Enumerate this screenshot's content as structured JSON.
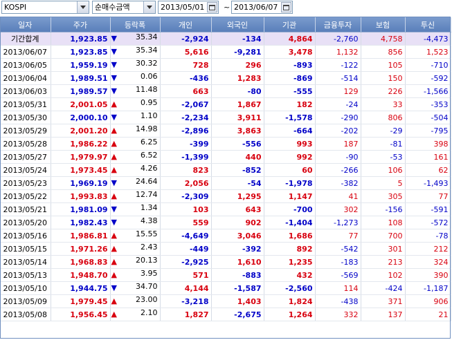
{
  "toolbar": {
    "market": "KOSPI",
    "metric": "순매수금액",
    "date_from": "2013/05/01",
    "date_to": "2013/06/07",
    "dash": "~"
  },
  "columns": [
    "일자",
    "주가",
    "등락폭",
    "개인",
    "외국인",
    "기관",
    "금융투자",
    "보험",
    "투신"
  ],
  "rows": [
    {
      "date": "기간합계",
      "price": "1,923.85",
      "dir": "down",
      "chg": "35.34",
      "ind": "-2,924",
      "for": "-134",
      "inst": "4,864",
      "fin": "-2,760",
      "ins": "4,758",
      "trust": "-4,473",
      "sum": true
    },
    {
      "date": "2013/06/07",
      "price": "1,923.85",
      "dir": "down",
      "chg": "35.34",
      "ind": "5,616",
      "for": "-9,281",
      "inst": "3,478",
      "fin": "1,132",
      "ins": "856",
      "trust": "1,523"
    },
    {
      "date": "2013/06/05",
      "price": "1,959.19",
      "dir": "down",
      "chg": "30.32",
      "ind": "728",
      "for": "296",
      "inst": "-893",
      "fin": "-122",
      "ins": "105",
      "trust": "-710"
    },
    {
      "date": "2013/06/04",
      "price": "1,989.51",
      "dir": "down",
      "chg": "0.06",
      "ind": "-436",
      "for": "1,283",
      "inst": "-869",
      "fin": "-514",
      "ins": "150",
      "trust": "-592"
    },
    {
      "date": "2013/06/03",
      "price": "1,989.57",
      "dir": "down",
      "chg": "11.48",
      "ind": "663",
      "for": "-80",
      "inst": "-555",
      "fin": "129",
      "ins": "226",
      "trust": "-1,566"
    },
    {
      "date": "2013/05/31",
      "price": "2,001.05",
      "dir": "up",
      "chg": "0.95",
      "ind": "-2,067",
      "for": "1,867",
      "inst": "182",
      "fin": "-24",
      "ins": "33",
      "trust": "-353"
    },
    {
      "date": "2013/05/30",
      "price": "2,000.10",
      "dir": "down",
      "chg": "1.10",
      "ind": "-2,234",
      "for": "3,911",
      "inst": "-1,578",
      "fin": "-290",
      "ins": "806",
      "trust": "-504"
    },
    {
      "date": "2013/05/29",
      "price": "2,001.20",
      "dir": "up",
      "chg": "14.98",
      "ind": "-2,896",
      "for": "3,863",
      "inst": "-664",
      "fin": "-202",
      "ins": "-29",
      "trust": "-795"
    },
    {
      "date": "2013/05/28",
      "price": "1,986.22",
      "dir": "up",
      "chg": "6.25",
      "ind": "-399",
      "for": "-556",
      "inst": "993",
      "fin": "187",
      "ins": "-81",
      "trust": "398"
    },
    {
      "date": "2013/05/27",
      "price": "1,979.97",
      "dir": "up",
      "chg": "6.52",
      "ind": "-1,399",
      "for": "440",
      "inst": "992",
      "fin": "-90",
      "ins": "-53",
      "trust": "161"
    },
    {
      "date": "2013/05/24",
      "price": "1,973.45",
      "dir": "up",
      "chg": "4.26",
      "ind": "823",
      "for": "-852",
      "inst": "60",
      "fin": "-266",
      "ins": "106",
      "trust": "62"
    },
    {
      "date": "2013/05/23",
      "price": "1,969.19",
      "dir": "down",
      "chg": "24.64",
      "ind": "2,056",
      "for": "-54",
      "inst": "-1,978",
      "fin": "-382",
      "ins": "5",
      "trust": "-1,493"
    },
    {
      "date": "2013/05/22",
      "price": "1,993.83",
      "dir": "up",
      "chg": "12.74",
      "ind": "-2,309",
      "for": "1,295",
      "inst": "1,147",
      "fin": "41",
      "ins": "305",
      "trust": "77"
    },
    {
      "date": "2013/05/21",
      "price": "1,981.09",
      "dir": "down",
      "chg": "1.34",
      "ind": "103",
      "for": "643",
      "inst": "-700",
      "fin": "302",
      "ins": "-156",
      "trust": "-591"
    },
    {
      "date": "2013/05/20",
      "price": "1,982.43",
      "dir": "down",
      "chg": "4.38",
      "ind": "559",
      "for": "902",
      "inst": "-1,404",
      "fin": "-1,273",
      "ins": "108",
      "trust": "-572"
    },
    {
      "date": "2013/05/16",
      "price": "1,986.81",
      "dir": "up",
      "chg": "15.55",
      "ind": "-4,649",
      "for": "3,046",
      "inst": "1,686",
      "fin": "77",
      "ins": "700",
      "trust": "-78"
    },
    {
      "date": "2013/05/15",
      "price": "1,971.26",
      "dir": "up",
      "chg": "2.43",
      "ind": "-449",
      "for": "-392",
      "inst": "892",
      "fin": "-542",
      "ins": "301",
      "trust": "212"
    },
    {
      "date": "2013/05/14",
      "price": "1,968.83",
      "dir": "up",
      "chg": "20.13",
      "ind": "-2,925",
      "for": "1,610",
      "inst": "1,235",
      "fin": "-183",
      "ins": "213",
      "trust": "324"
    },
    {
      "date": "2013/05/13",
      "price": "1,948.70",
      "dir": "up",
      "chg": "3.95",
      "ind": "571",
      "for": "-883",
      "inst": "432",
      "fin": "-569",
      "ins": "102",
      "trust": "390"
    },
    {
      "date": "2013/05/10",
      "price": "1,944.75",
      "dir": "down",
      "chg": "34.70",
      "ind": "4,144",
      "for": "-1,587",
      "inst": "-2,560",
      "fin": "114",
      "ins": "-424",
      "trust": "-1,187"
    },
    {
      "date": "2013/05/09",
      "price": "1,979.45",
      "dir": "up",
      "chg": "23.00",
      "ind": "-3,218",
      "for": "1,403",
      "inst": "1,824",
      "fin": "-438",
      "ins": "371",
      "trust": "906"
    },
    {
      "date": "2013/05/08",
      "price": "1,956.45",
      "dir": "up",
      "chg": "2.10",
      "ind": "1,827",
      "for": "-2,675",
      "inst": "1,264",
      "fin": "332",
      "ins": "137",
      "trust": "21"
    }
  ],
  "colors": {
    "up": "#d8000f",
    "down": "#0000c8",
    "header": "#6a8cc4",
    "sum_row": "#e8e0f6"
  },
  "icons": {
    "up": "triangle-up-icon",
    "down": "triangle-down-icon",
    "calendar": "calendar-icon",
    "dropdown": "chevron-down-icon"
  }
}
